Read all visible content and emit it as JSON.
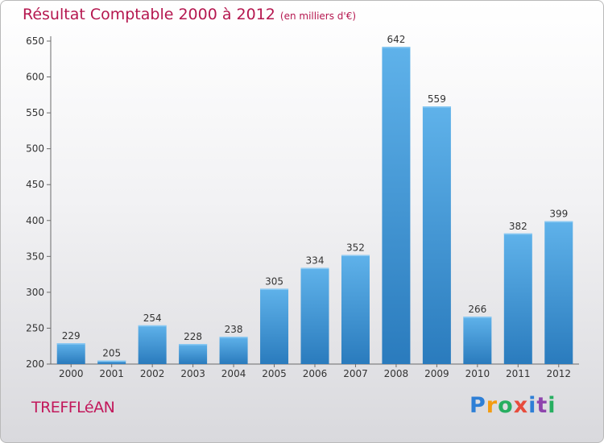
{
  "title": "Résultat Comptable 2000 à 2012",
  "subtitle": "(en milliers d'€)",
  "town": "TREFFLéAN",
  "logo": {
    "letters": [
      "P",
      "r",
      "o",
      "x",
      "i",
      "t",
      "i"
    ],
    "colors": [
      "#2e7fd6",
      "#f39c12",
      "#27ae60",
      "#e74c3c",
      "#2e7fd6",
      "#8e44ad",
      "#27ae60"
    ]
  },
  "colors": {
    "bar_top": "#5fb2ea",
    "bar_bottom": "#2a7bbd",
    "title": "#b5174f"
  },
  "chart_data": {
    "type": "bar",
    "categories": [
      "2000",
      "2001",
      "2002",
      "2003",
      "2004",
      "2005",
      "2006",
      "2007",
      "2008",
      "2009",
      "2010",
      "2011",
      "2012"
    ],
    "values": [
      229,
      205,
      254,
      228,
      238,
      305,
      334,
      352,
      642,
      559,
      266,
      382,
      399
    ],
    "ylim": [
      200,
      650
    ],
    "yticks": [
      200,
      250,
      300,
      350,
      400,
      450,
      500,
      550,
      600,
      650
    ],
    "grid": false
  }
}
